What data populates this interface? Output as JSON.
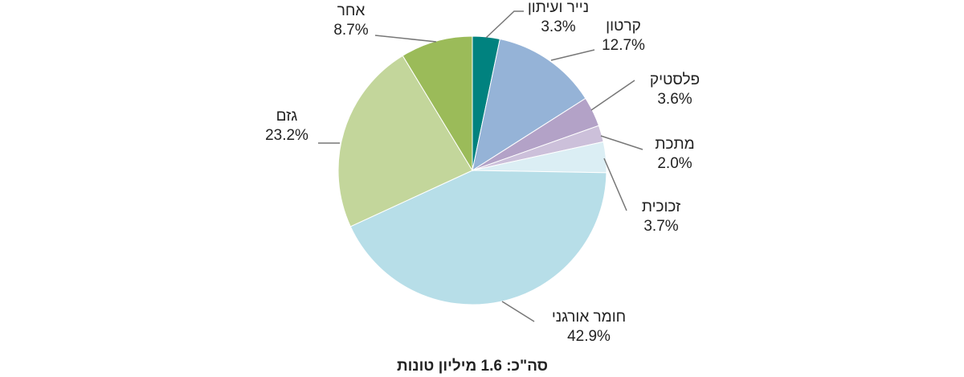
{
  "chart_data": {
    "type": "pie",
    "title": "סה\"כ: 1.6 מיליון טונות",
    "categories": [
      "נייר ועיתון",
      "קרטון",
      "פלסטיק",
      "מתכת",
      "זכוכית",
      "חומר אורגני",
      "גזם",
      "אחר"
    ],
    "values": [
      3.3,
      12.7,
      3.6,
      2.0,
      3.7,
      42.9,
      23.2,
      8.7
    ],
    "value_labels": [
      "3.3%",
      "12.7%",
      "3.6%",
      "2.0%",
      "3.7%",
      "42.9%",
      "23.2%",
      "8.7%"
    ],
    "colors": [
      "#00827f",
      "#95b3d7",
      "#b3a2c7",
      "#ccc0da",
      "#dbeef4",
      "#b7dee8",
      "#c3d69b",
      "#9bbb59"
    ]
  }
}
